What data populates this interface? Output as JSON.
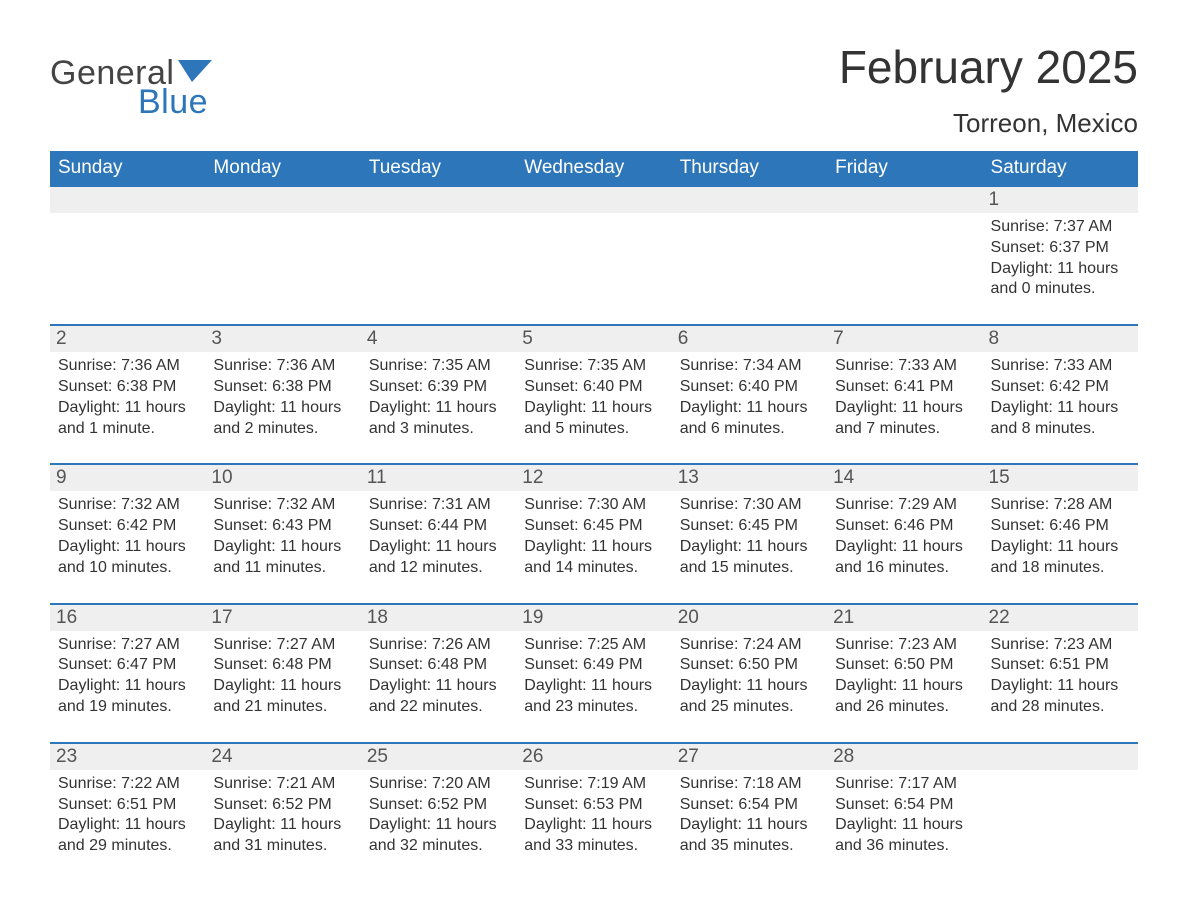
{
  "brand": {
    "word1": "General",
    "word2": "Blue",
    "accent_color": "#2d76b9"
  },
  "title": {
    "month": "February 2025",
    "location": "Torreon, Mexico"
  },
  "colors": {
    "header_bg": "#2d76b9",
    "header_text": "#ffffff",
    "strip_bg": "#efefef",
    "strip_border": "#2d76b9",
    "text": "#333333",
    "page_bg": "#ffffff"
  },
  "headers": [
    "Sunday",
    "Monday",
    "Tuesday",
    "Wednesday",
    "Thursday",
    "Friday",
    "Saturday"
  ],
  "weeks": [
    [
      {
        "day": "",
        "sunrise": "",
        "sunset": "",
        "daylight": ""
      },
      {
        "day": "",
        "sunrise": "",
        "sunset": "",
        "daylight": ""
      },
      {
        "day": "",
        "sunrise": "",
        "sunset": "",
        "daylight": ""
      },
      {
        "day": "",
        "sunrise": "",
        "sunset": "",
        "daylight": ""
      },
      {
        "day": "",
        "sunrise": "",
        "sunset": "",
        "daylight": ""
      },
      {
        "day": "",
        "sunrise": "",
        "sunset": "",
        "daylight": ""
      },
      {
        "day": "1",
        "sunrise": "Sunrise: 7:37 AM",
        "sunset": "Sunset: 6:37 PM",
        "daylight": "Daylight: 11 hours and 0 minutes."
      }
    ],
    [
      {
        "day": "2",
        "sunrise": "Sunrise: 7:36 AM",
        "sunset": "Sunset: 6:38 PM",
        "daylight": "Daylight: 11 hours and 1 minute."
      },
      {
        "day": "3",
        "sunrise": "Sunrise: 7:36 AM",
        "sunset": "Sunset: 6:38 PM",
        "daylight": "Daylight: 11 hours and 2 minutes."
      },
      {
        "day": "4",
        "sunrise": "Sunrise: 7:35 AM",
        "sunset": "Sunset: 6:39 PM",
        "daylight": "Daylight: 11 hours and 3 minutes."
      },
      {
        "day": "5",
        "sunrise": "Sunrise: 7:35 AM",
        "sunset": "Sunset: 6:40 PM",
        "daylight": "Daylight: 11 hours and 5 minutes."
      },
      {
        "day": "6",
        "sunrise": "Sunrise: 7:34 AM",
        "sunset": "Sunset: 6:40 PM",
        "daylight": "Daylight: 11 hours and 6 minutes."
      },
      {
        "day": "7",
        "sunrise": "Sunrise: 7:33 AM",
        "sunset": "Sunset: 6:41 PM",
        "daylight": "Daylight: 11 hours and 7 minutes."
      },
      {
        "day": "8",
        "sunrise": "Sunrise: 7:33 AM",
        "sunset": "Sunset: 6:42 PM",
        "daylight": "Daylight: 11 hours and 8 minutes."
      }
    ],
    [
      {
        "day": "9",
        "sunrise": "Sunrise: 7:32 AM",
        "sunset": "Sunset: 6:42 PM",
        "daylight": "Daylight: 11 hours and 10 minutes."
      },
      {
        "day": "10",
        "sunrise": "Sunrise: 7:32 AM",
        "sunset": "Sunset: 6:43 PM",
        "daylight": "Daylight: 11 hours and 11 minutes."
      },
      {
        "day": "11",
        "sunrise": "Sunrise: 7:31 AM",
        "sunset": "Sunset: 6:44 PM",
        "daylight": "Daylight: 11 hours and 12 minutes."
      },
      {
        "day": "12",
        "sunrise": "Sunrise: 7:30 AM",
        "sunset": "Sunset: 6:45 PM",
        "daylight": "Daylight: 11 hours and 14 minutes."
      },
      {
        "day": "13",
        "sunrise": "Sunrise: 7:30 AM",
        "sunset": "Sunset: 6:45 PM",
        "daylight": "Daylight: 11 hours and 15 minutes."
      },
      {
        "day": "14",
        "sunrise": "Sunrise: 7:29 AM",
        "sunset": "Sunset: 6:46 PM",
        "daylight": "Daylight: 11 hours and 16 minutes."
      },
      {
        "day": "15",
        "sunrise": "Sunrise: 7:28 AM",
        "sunset": "Sunset: 6:46 PM",
        "daylight": "Daylight: 11 hours and 18 minutes."
      }
    ],
    [
      {
        "day": "16",
        "sunrise": "Sunrise: 7:27 AM",
        "sunset": "Sunset: 6:47 PM",
        "daylight": "Daylight: 11 hours and 19 minutes."
      },
      {
        "day": "17",
        "sunrise": "Sunrise: 7:27 AM",
        "sunset": "Sunset: 6:48 PM",
        "daylight": "Daylight: 11 hours and 21 minutes."
      },
      {
        "day": "18",
        "sunrise": "Sunrise: 7:26 AM",
        "sunset": "Sunset: 6:48 PM",
        "daylight": "Daylight: 11 hours and 22 minutes."
      },
      {
        "day": "19",
        "sunrise": "Sunrise: 7:25 AM",
        "sunset": "Sunset: 6:49 PM",
        "daylight": "Daylight: 11 hours and 23 minutes."
      },
      {
        "day": "20",
        "sunrise": "Sunrise: 7:24 AM",
        "sunset": "Sunset: 6:50 PM",
        "daylight": "Daylight: 11 hours and 25 minutes."
      },
      {
        "day": "21",
        "sunrise": "Sunrise: 7:23 AM",
        "sunset": "Sunset: 6:50 PM",
        "daylight": "Daylight: 11 hours and 26 minutes."
      },
      {
        "day": "22",
        "sunrise": "Sunrise: 7:23 AM",
        "sunset": "Sunset: 6:51 PM",
        "daylight": "Daylight: 11 hours and 28 minutes."
      }
    ],
    [
      {
        "day": "23",
        "sunrise": "Sunrise: 7:22 AM",
        "sunset": "Sunset: 6:51 PM",
        "daylight": "Daylight: 11 hours and 29 minutes."
      },
      {
        "day": "24",
        "sunrise": "Sunrise: 7:21 AM",
        "sunset": "Sunset: 6:52 PM",
        "daylight": "Daylight: 11 hours and 31 minutes."
      },
      {
        "day": "25",
        "sunrise": "Sunrise: 7:20 AM",
        "sunset": "Sunset: 6:52 PM",
        "daylight": "Daylight: 11 hours and 32 minutes."
      },
      {
        "day": "26",
        "sunrise": "Sunrise: 7:19 AM",
        "sunset": "Sunset: 6:53 PM",
        "daylight": "Daylight: 11 hours and 33 minutes."
      },
      {
        "day": "27",
        "sunrise": "Sunrise: 7:18 AM",
        "sunset": "Sunset: 6:54 PM",
        "daylight": "Daylight: 11 hours and 35 minutes."
      },
      {
        "day": "28",
        "sunrise": "Sunrise: 7:17 AM",
        "sunset": "Sunset: 6:54 PM",
        "daylight": "Daylight: 11 hours and 36 minutes."
      },
      {
        "day": "",
        "sunrise": "",
        "sunset": "",
        "daylight": ""
      }
    ]
  ]
}
